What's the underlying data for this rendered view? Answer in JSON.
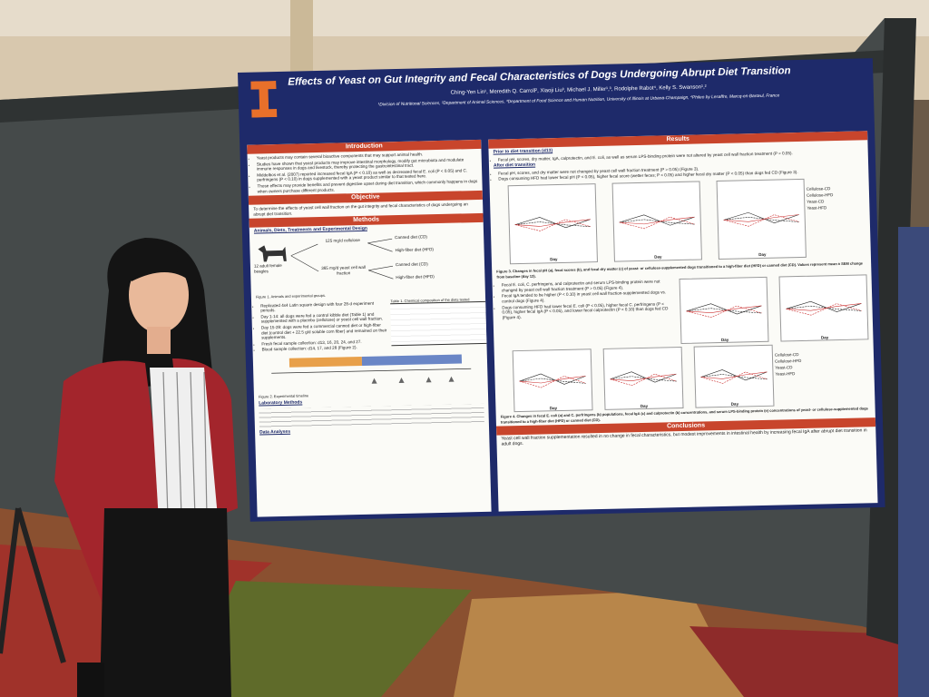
{
  "poster": {
    "title": "Effects of Yeast on Gut Integrity and Fecal Characteristics of Dogs Undergoing Abrupt Diet Transition",
    "authors": "Ching-Yen Lin¹, Meredith Q. Carroll², Xiaoji Liu³, Michael J. Miller¹,³, Rodolphe Rabot⁴, Kelly S. Swanson¹,²",
    "affiliations": "¹Division of Nutritional Sciences, ²Department of Animal Sciences, ³Department of Food Science and Human Nutrition, University of Illinois at Urbana-Champaign, ⁴Phileo by Lesaffre, Marcq-en-Barœul, France",
    "introduction": {
      "heading": "Introduction",
      "bullets": [
        "Yeast products may contain several bioactive components that may support animal health.",
        "Studies have shown that yeast products may improve intestinal morphology, modify gut microbiota and modulate immune responses in dogs and livestock, thereby protecting the gastrointestinal tract.",
        "Middelbos et al. (2007) reported increased fecal IgA (P < 0.10) as well as decreased fecal E. coli (P < 0.05) and C. perfringens (P < 0.10) in dogs supplemented with a yeast product similar to that tested here.",
        "Those effects may provide benefits and prevent digestive upset during diet transition, which commonly happens in dogs when owners purchase different products."
      ]
    },
    "objective": {
      "heading": "Objective",
      "text": "To determine the effects of yeast cell wall fraction on the gut integrity and fecal characteristics of dogs undergoing an abrupt diet transition."
    },
    "methods": {
      "heading": "Methods",
      "subheading": "Animals, Diets, Treatments and Experimental Design",
      "diagram": [
        "12 adult female beagles",
        "125 mg/d cellulose",
        "365 mg/d yeast cell wall fraction",
        "Canned diet (CD)",
        "High-fiber diet (HFD)",
        "Canned diet (CD)",
        "High-fiber diet (HFD)"
      ],
      "figure1": "Figure 1. Animals and experimental groups.",
      "bullets": [
        "Replicated 4x4 Latin square design with four 28-d experiment periods.",
        "Day 1-14: all dogs were fed a control kibble diet (Table 1) and supplemented with a placebo (cellulose) or yeast cell wall fraction.",
        "Day 15-28: dogs were fed a commercial canned diet or high-fiber diet (control diet + 22.5 g/d soluble corn fiber) and remained on their supplements.",
        "Fresh fecal sample collection: d13, 16, 20, 24, and 27.",
        "Blood sample collection: d14, 17, and 28 (Figure 2)."
      ],
      "table1": "Table 1. Chemical composition of the diets tested",
      "figure2": "Figure 2. Experimental timeline",
      "analyses": "Laboratory Methods",
      "stats": "Data Analyses"
    },
    "results": {
      "heading": "Results",
      "prior": "Prior to diet transition (d13)",
      "prior_bullet": "Fecal pH, scores, dry matter, IgA, calprotectin, and E. coli, as well as serum LPS-binding protein were not altered by yeast cell wall fraction treatment (P > 0.05).",
      "after": "After diet transition",
      "after_bullets": [
        "Fecal pH, scores, and dry matter were not changed by yeast cell wall fraction treatment (P > 0.05) (Figure 3).",
        "Dogs consuming HFD had lower fecal pH (P < 0.05), higher fecal score (wetter feces; P < 0.05) and higher fecal dry matter (P < 0.05) than dogs fed CD (Figure 3)."
      ],
      "figure3": "Figure 3. Changes in fecal pH (a), fecal scores (b), and fecal dry matter (c) of yeast- or cellulose-supplemented dogs transitioned to a high-fiber diet (HFD) or canned diet (CD). Values represent mean ± SEM change from baseline (day 13).",
      "mid_bullets": [
        "Fecal E. coli, C. perfringens, and calprotectin and serum LPS-binding protein were not changed by yeast cell wall fraction treatment (P > 0.05) (Figure 4).",
        "Fecal IgA tended to be higher (P < 0.10) in yeast cell wall fraction-supplemented dogs vs. control dogs (Figure 4).",
        "Dogs consuming HFD had lower fecal E. coli (P < 0.05), higher fecal C. perfringens (P < 0.05), higher fecal IgA (P < 0.05), and lower fecal calprotectin (P < 0.10) than dogs fed CD (Figure 4)."
      ],
      "figure4": "Figure 4. Changes in fecal E. coli (a) and C. perfringens (b) populations, fecal IgA (c) and calprotectin (b) concentrations, and serum LPS-binding protein (e) concentrations of yeast- or cellulose-supplemented dogs transitioned to a high-fiber diet (HFD) or canned diet (CD).",
      "xlabel": "Day",
      "legend": [
        "Cellulose-CD",
        "Cellulose-HFD",
        "Yeast-CD",
        "Yeast-HFD"
      ]
    },
    "conclusions": {
      "heading": "Conclusions",
      "text": "Yeast cell wall fraction supplementation resulted in no change in fecal characteristics, but modest improvements in intestinal health by increasing fecal IgA after abrupt diet transition in adult dogs."
    }
  }
}
